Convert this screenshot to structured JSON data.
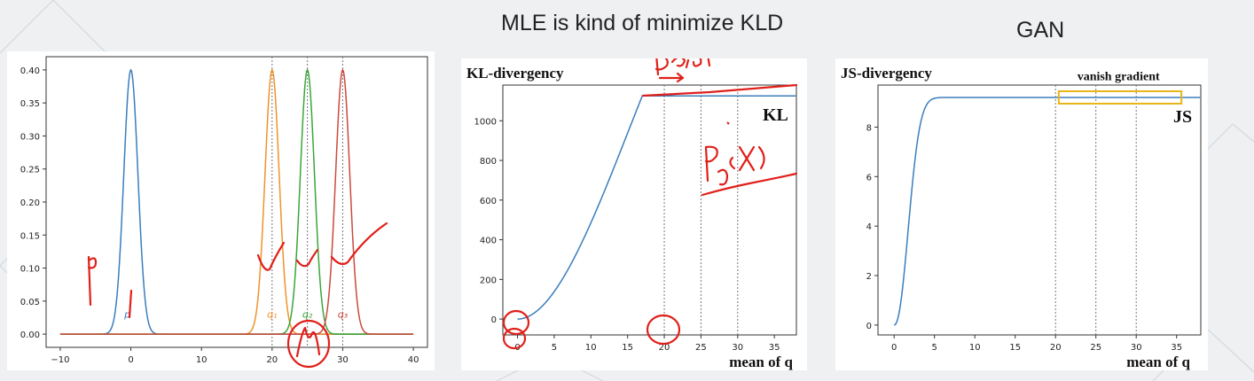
{
  "slide": {
    "title_mle": "MLE is kind of minimize KLD",
    "title_gan": "GAN"
  },
  "colors": {
    "p": "#3b7dbd",
    "q1": "#f0922b",
    "q2": "#3aa63a",
    "q3": "#cc4a3d",
    "ink": "#e0201a",
    "box": "#e8b418",
    "grid": "#777777"
  },
  "chart_data": [
    {
      "type": "line",
      "title": "",
      "xlabel": "",
      "ylabel": "",
      "xlim": [
        -12,
        42
      ],
      "ylim": [
        -0.02,
        0.42
      ],
      "xticks": [
        -10,
        0,
        10,
        20,
        30,
        40
      ],
      "yticks": [
        0.0,
        0.05,
        0.1,
        0.15,
        0.2,
        0.25,
        0.3,
        0.35,
        0.4
      ],
      "tick_labels_y": [
        "0.00",
        "0.05",
        "0.10",
        "0.15",
        "0.20",
        "0.25",
        "0.30",
        "0.35",
        "0.40"
      ],
      "tick_labels_x": [
        "−10",
        "0",
        "10",
        "20",
        "30",
        "40"
      ],
      "x_range": [
        -10,
        40
      ],
      "series": [
        {
          "name": "p",
          "mean": 0,
          "std": 1,
          "peak": 0.4
        },
        {
          "name": "q1",
          "mean": 20,
          "std": 1,
          "peak": 0.4
        },
        {
          "name": "q2",
          "mean": 25,
          "std": 1,
          "peak": 0.4
        },
        {
          "name": "q3",
          "mean": 30,
          "std": 1,
          "peak": 0.4
        }
      ],
      "vlines": [
        20,
        25,
        30
      ],
      "annotations": [
        {
          "text": "p",
          "x": -0.5,
          "y": 0.025
        },
        {
          "text": "q₁",
          "x": 20,
          "y": 0.025
        },
        {
          "text": "q₂",
          "x": 25,
          "y": 0.025
        },
        {
          "text": "q₃",
          "x": 30,
          "y": 0.025
        }
      ]
    },
    {
      "type": "line",
      "title": "KL-divergency",
      "xlabel": "mean of q",
      "ylabel": "",
      "xlim": [
        -2,
        38
      ],
      "ylim": [
        -80,
        1180
      ],
      "xticks": [
        0,
        5,
        10,
        15,
        20,
        25,
        30,
        35
      ],
      "yticks": [
        0,
        200,
        400,
        600,
        800,
        1000
      ],
      "series_label": "KL",
      "plateau": 1125,
      "plateau_start": 17,
      "vlines": [
        20,
        25,
        30
      ]
    },
    {
      "type": "line",
      "title": "JS-divergency",
      "xlabel": "mean of q",
      "ylabel": "",
      "xlim": [
        -2,
        38
      ],
      "ylim": [
        -0.4,
        9.7
      ],
      "xticks": [
        0,
        5,
        10,
        15,
        20,
        25,
        30,
        35
      ],
      "yticks": [
        0,
        2,
        4,
        6,
        8
      ],
      "series_label": "JS",
      "plateau": 9.2,
      "vlines": [
        20,
        25,
        30
      ],
      "annotation": "vanish gradient"
    }
  ]
}
